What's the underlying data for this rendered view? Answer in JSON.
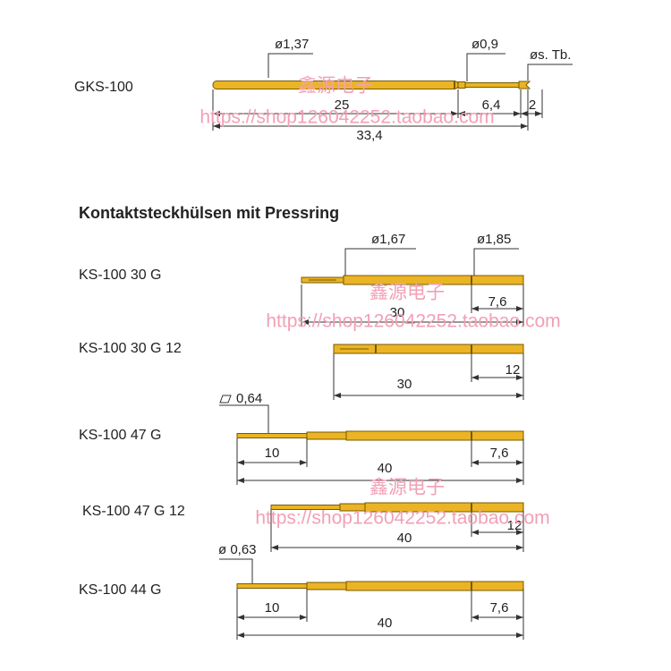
{
  "gks_100": {
    "label": "GKS-100",
    "diameter_body": "ø1,37",
    "diameter_tip": "ø0,9",
    "tip_note": "øs. Tb.",
    "length_body": "25",
    "length_tip": "6,4",
    "length_crown": "2",
    "length_total": "33,4"
  },
  "section_title": "Kontaktsteckhülsen mit Pressring",
  "parts": [
    {
      "label": "KS-100 30 G",
      "diameter_front": "ø1,67",
      "diameter_ring": "ø1,85",
      "length_ring": "7,6",
      "length_total": "30"
    },
    {
      "label": "KS-100 30 G 12",
      "length_ring": "12",
      "length_total": "30"
    },
    {
      "label": "KS-100 47 G",
      "tip_size": "0,64",
      "length_tip": "10",
      "length_ring": "7,6",
      "length_total": "40"
    },
    {
      "label": "KS-100 47 G 12",
      "length_ring": "12",
      "length_total": "40"
    },
    {
      "label": "KS-100 44 G",
      "tip_size": "ø 0,63",
      "length_tip": "10",
      "length_ring": "7,6",
      "length_total": "40"
    }
  ],
  "watermarks": [
    {
      "brand": "鑫源电子",
      "url": "https://shop126042252.taobao.com"
    },
    {
      "brand": "鑫源电子",
      "url": "https://shop126042252.taobao.com"
    },
    {
      "brand": "鑫源电子",
      "url": "https://shop126042252.taobao.com"
    }
  ]
}
